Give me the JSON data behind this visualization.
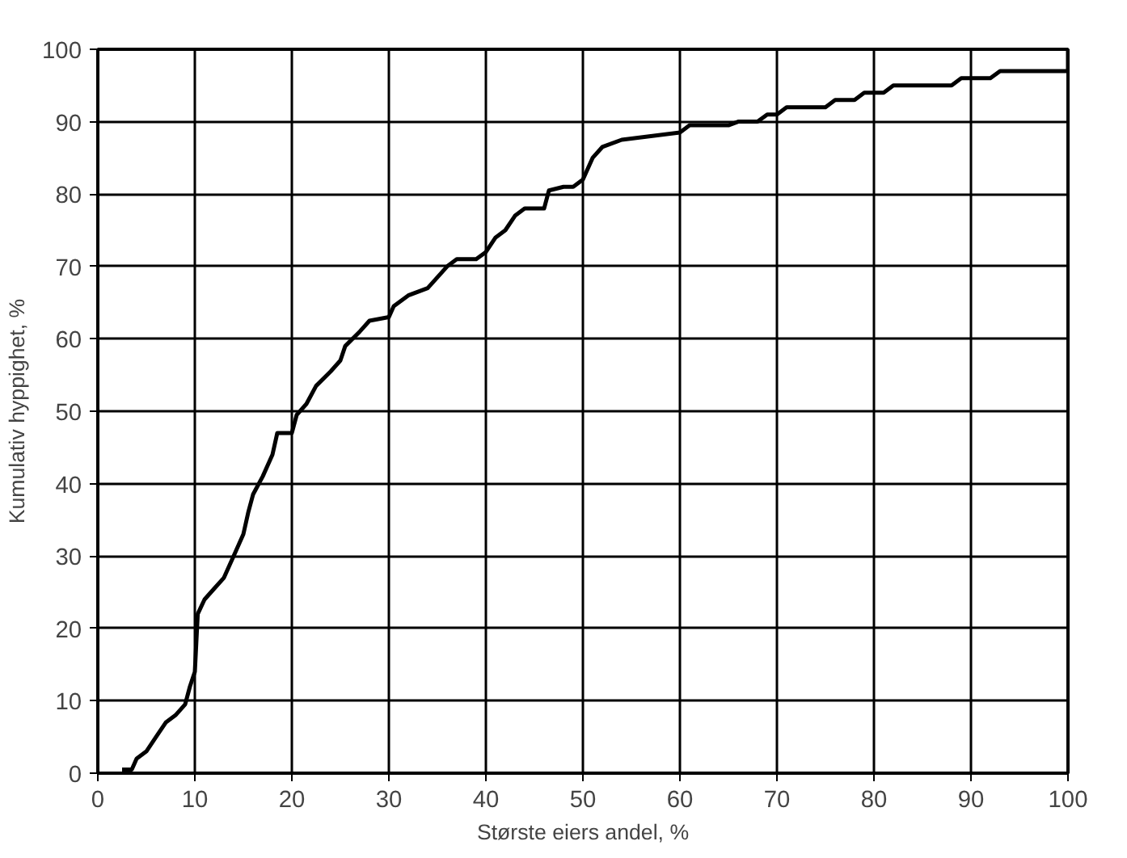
{
  "chart_data": {
    "type": "line",
    "xlabel": "Største eiers andel, %",
    "ylabel": "Kumulativ hyppighet, %",
    "x": [
      2.5,
      3.5,
      4,
      5,
      6,
      7,
      8,
      9,
      9.5,
      10,
      10.3,
      11,
      12,
      13,
      14,
      15,
      15.5,
      16,
      17,
      18,
      18.5,
      20,
      20.5,
      21.5,
      22.5,
      24,
      25,
      25.5,
      27,
      28,
      30,
      30.5,
      32,
      34,
      36,
      37,
      39,
      40,
      41,
      42,
      43,
      44,
      46,
      46.5,
      48,
      49,
      50,
      51,
      52,
      54,
      57,
      60,
      61,
      65,
      66,
      68,
      69,
      70,
      71,
      75,
      76,
      78,
      79,
      81,
      82,
      88,
      89,
      92,
      93,
      100,
      100
    ],
    "series": [
      {
        "color": "#000000",
        "values": [
          0.5,
          0.5,
          2,
          3,
          5,
          7,
          8,
          9.5,
          12,
          14,
          22,
          24,
          25.5,
          27,
          30,
          33,
          36,
          38.5,
          41,
          44,
          47,
          47,
          49.5,
          51,
          53.5,
          55.5,
          57,
          59,
          61,
          62.5,
          63,
          64.5,
          66,
          67,
          70,
          71,
          71,
          72,
          74,
          75,
          77,
          78,
          78,
          80.5,
          81,
          81,
          82,
          85,
          86.5,
          87.5,
          88,
          88.5,
          89.5,
          89.5,
          90,
          90,
          91,
          91,
          92,
          92,
          93,
          93,
          94,
          94,
          95,
          95,
          96,
          96,
          97,
          97,
          100
        ]
      }
    ],
    "xlim": [
      0,
      100
    ],
    "ylim": [
      0,
      100
    ],
    "xticks": [
      0,
      10,
      20,
      30,
      40,
      50,
      60,
      70,
      80,
      90,
      100
    ],
    "yticks": [
      0,
      10,
      20,
      30,
      40,
      50,
      60,
      70,
      80,
      90,
      100
    ],
    "grid": true,
    "marker": "none",
    "line_style": "solid"
  }
}
